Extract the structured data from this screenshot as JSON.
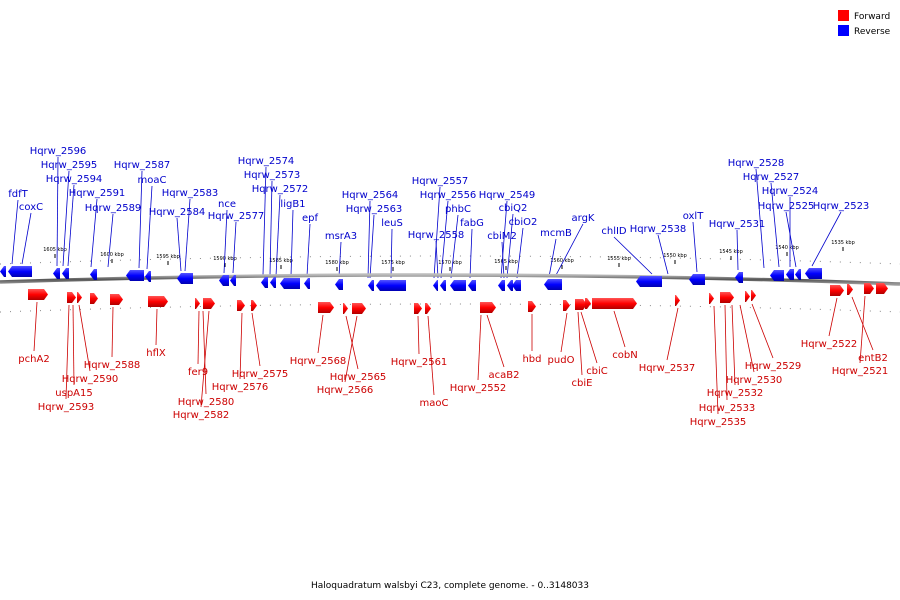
{
  "caption": "Haloquadratum walsbyi C23, complete genome. - 0..3148033",
  "legend": [
    {
      "label": "Forward",
      "color": "#ff0000"
    },
    {
      "label": "Reverse",
      "color": "#0000ff"
    }
  ],
  "ticks": [
    "1605 kbp",
    "1600 kbp",
    "1595 kbp",
    "1590 kbp",
    "1585 kbp",
    "1580 kbp",
    "1575 kbp",
    "1570 kbp",
    "1565 kbp",
    "1560 kbp",
    "1555 kbp",
    "1550 kbp",
    "1545 kbp",
    "1540 kbp",
    "1535 kbp"
  ],
  "reverse_genes": [
    "fdfT",
    "coxC",
    "Hqrw_2596",
    "Hqrw_2595",
    "Hqrw_2594",
    "Hqrw_2591",
    "Hqrw_2589",
    "Hqrw_2587",
    "moaC",
    "Hqrw_2583",
    "Hqrw_2584",
    "nce",
    "Hqrw_2577",
    "Hqrw_2574",
    "Hqrw_2573",
    "Hqrw_2572",
    "ligB1",
    "epf",
    "msrA3",
    "Hqrw_2564",
    "Hqrw_2563",
    "leuS",
    "Hqrw_2557",
    "Hqrw_2556",
    "phbC",
    "fabG",
    "Hqrw_2558",
    "Hqrw_2549",
    "cbiQ2",
    "cbiO2",
    "cbiM2",
    "mcmB",
    "argK",
    "chlID",
    "Hqrw_2538",
    "oxlT",
    "Hqrw_2531",
    "Hqrw_2528",
    "Hqrw_2527",
    "Hqrw_2524",
    "Hqrw_2525",
    "Hqrw_2523"
  ],
  "forward_genes": [
    "pchA2",
    "Hqrw_2590",
    "uspA15",
    "Hqrw_2593",
    "Hqrw_2588",
    "hflX",
    "fer9",
    "Hqrw_2580",
    "Hqrw_2582",
    "Hqrw_2575",
    "Hqrw_2576",
    "Hqrw_2568",
    "Hqrw_2565",
    "Hqrw_2566",
    "Hqrw_2561",
    "maoC",
    "acaB2",
    "Hqrw_2552",
    "hbd",
    "pudO",
    "cbiC",
    "cbiE",
    "cobN",
    "Hqrw_2537",
    "Hqrw_2529",
    "Hqrw_2530",
    "Hqrw_2532",
    "Hqrw_2533",
    "Hqrw_2535",
    "Hqrw_2522",
    "entB2",
    "Hqrw_2521"
  ]
}
